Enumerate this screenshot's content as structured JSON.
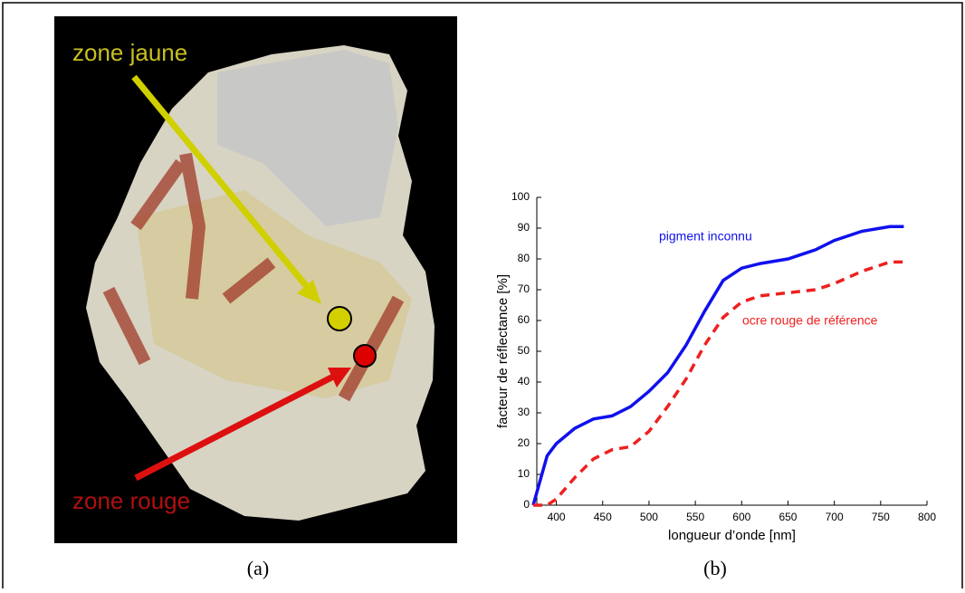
{
  "photo": {
    "labels": [
      "zone jaune",
      "zone rouge"
    ],
    "caption": "(a)"
  },
  "chart_data": {
    "type": "line",
    "caption": "(b)",
    "x_label": "longueur d’onde [nm]",
    "y_label": "facteur de réflectance [%]",
    "x": [
      375,
      390,
      400,
      420,
      440,
      460,
      480,
      500,
      520,
      540,
      560,
      580,
      600,
      620,
      650,
      680,
      700,
      730,
      760,
      775
    ],
    "series": [
      {
        "name": "pigment inconnu",
        "color": "#1010ee",
        "style": "solid",
        "values": [
          0,
          16,
          20,
          25,
          28,
          29,
          32,
          37,
          43,
          52,
          63,
          73,
          77,
          78.5,
          80,
          83,
          86,
          89,
          90.5,
          90.5
        ]
      },
      {
        "name": "ocre rouge de référence",
        "color": "#ee2020",
        "style": "dashed",
        "values": [
          0,
          0,
          2,
          9,
          15,
          18,
          19,
          24,
          32,
          41,
          52,
          61,
          66,
          68,
          69,
          70,
          72,
          76,
          79,
          79
        ]
      }
    ],
    "xlim": [
      375,
      800
    ],
    "xticks": [
      400,
      450,
      500,
      550,
      600,
      650,
      700,
      750,
      800
    ],
    "ylim": [
      0,
      100
    ],
    "yticks": [
      0,
      10,
      20,
      30,
      40,
      50,
      60,
      70,
      80,
      90,
      100
    ],
    "grid": false
  }
}
